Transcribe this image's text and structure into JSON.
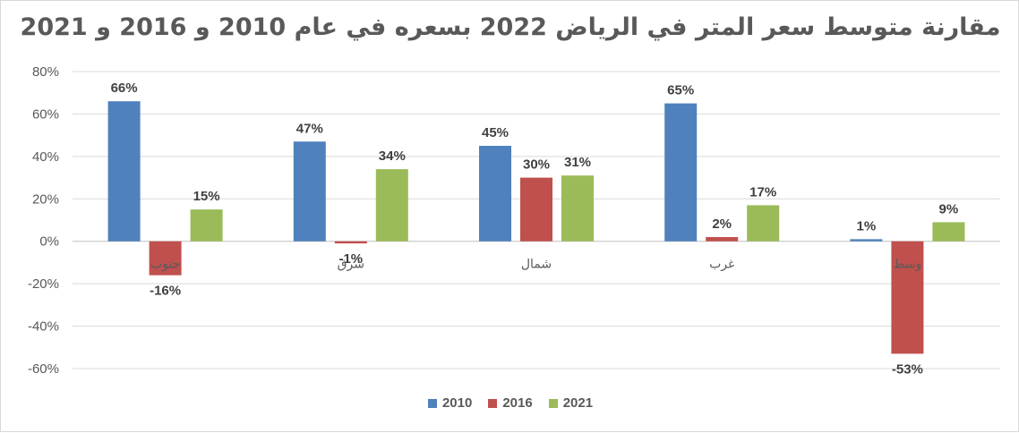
{
  "chart_data": {
    "type": "bar",
    "title": "مقارنة متوسط سعر المتر في الرياض 2022 بسعره في عام 2010 و 2016 و 2021",
    "categories": [
      "جنوب",
      "شرق",
      "شمال",
      "غرب",
      "وسط"
    ],
    "series": [
      {
        "name": "2010",
        "color": "#4f81bd",
        "values": [
          66,
          47,
          45,
          65,
          1
        ],
        "labels": [
          "66%",
          "47%",
          "45%",
          "65%",
          "1%"
        ]
      },
      {
        "name": "2016",
        "color": "#c0504d",
        "values": [
          -16,
          -1,
          30,
          2,
          -53
        ],
        "labels": [
          "-16%",
          "-1%",
          "30%",
          "2%",
          "-53%"
        ]
      },
      {
        "name": "2021",
        "color": "#9bbb59",
        "values": [
          15,
          34,
          31,
          17,
          9
        ],
        "labels": [
          "15%",
          "34%",
          "31%",
          "17%",
          "9%"
        ]
      }
    ],
    "ylim": [
      -60,
      80
    ],
    "yticks": [
      80,
      60,
      40,
      20,
      0,
      -20,
      -40,
      -60
    ],
    "ytick_labels": [
      "80%",
      "60%",
      "40%",
      "20%",
      "0%",
      "-20%",
      "-40%",
      "-60%"
    ],
    "grid": true,
    "legend_position": "bottom",
    "xlabel": "",
    "ylabel": ""
  }
}
